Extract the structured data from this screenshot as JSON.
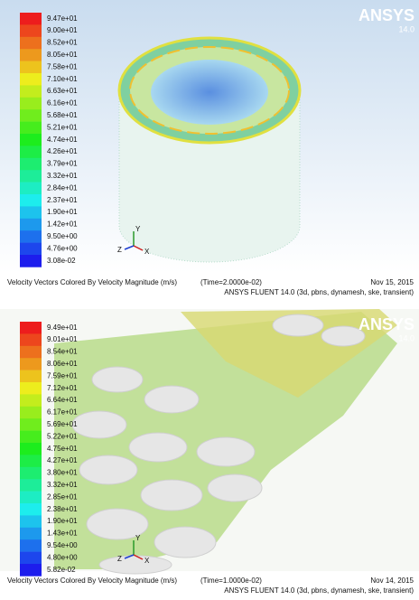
{
  "panels": [
    {
      "legend_labels": [
        "9.47e+01",
        "9.00e+01",
        "8.52e+01",
        "8.05e+01",
        "7.58e+01",
        "7.10e+01",
        "6.63e+01",
        "6.16e+01",
        "5.68e+01",
        "5.21e+01",
        "4.74e+01",
        "4.26e+01",
        "3.79e+01",
        "3.32e+01",
        "2.84e+01",
        "2.37e+01",
        "1.90e+01",
        "1.42e+01",
        "9.50e+00",
        "4.76e+00",
        "3.08e-02"
      ],
      "caption": "Velocity Vectors Colored By Velocity Magnitude (m/s)",
      "time": "(Time=2.0000e-02)",
      "date": "Nov 15, 2015",
      "solver": "ANSYS FLUENT 14.0 (3d, pbns, dynamesh, ske, transient)",
      "logo": "ANSYS",
      "version": "14.0",
      "triad": {
        "y": "Y",
        "z": "Z",
        "x": "X"
      }
    },
    {
      "legend_labels": [
        "9.49e+01",
        "9.01e+01",
        "8.54e+01",
        "8.06e+01",
        "7.59e+01",
        "7.12e+01",
        "6.64e+01",
        "6.17e+01",
        "5.69e+01",
        "5.22e+01",
        "4.75e+01",
        "4.27e+01",
        "3.80e+01",
        "3.32e+01",
        "2.85e+01",
        "2.38e+01",
        "1.90e+01",
        "1.43e+01",
        "9.54e+00",
        "4.80e+00",
        "5.82e-02"
      ],
      "caption": "Velocity Vectors Colored By Velocity Magnitude (m/s)",
      "time": "(Time=1.0000e-02)",
      "date": "Nov 14, 2015",
      "solver": "ANSYS FLUENT 14.0 (3d, pbns, dynamesh, ske, transient)",
      "logo": "ANSYS",
      "version": "14.0",
      "triad": {
        "y": "Y",
        "z": "Z",
        "x": "X"
      }
    }
  ]
}
